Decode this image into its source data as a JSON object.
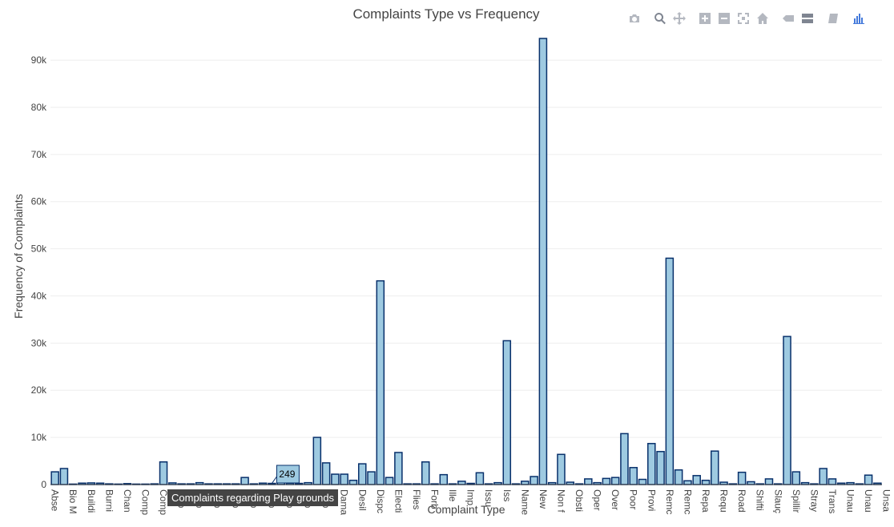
{
  "toolbar": {
    "icons": [
      "camera-icon",
      "zoom-icon",
      "pan-icon",
      "zoom-in-icon",
      "zoom-out-icon",
      "autoscale-icon",
      "home-icon",
      "spike-lines-icon",
      "compare-hover-icon",
      "closest-hover-icon",
      "plotly-logo-icon"
    ]
  },
  "hover": {
    "value_label": "249",
    "category_label": "Complaints regarding Play grounds",
    "category_index": 24
  },
  "colors": {
    "bar_fill": "#9ecae1",
    "bar_stroke": "#08306b",
    "grid": "#eeeeee",
    "tooltip_bg": "#444444"
  },
  "chart_data": {
    "type": "bar",
    "title": "Complaints Type vs Frequency",
    "xlabel": "Complaint Type",
    "ylabel": "Frequency of Complaints",
    "ylim": [
      0,
      98000
    ],
    "yticks": [
      0,
      10000,
      20000,
      30000,
      40000,
      50000,
      60000,
      70000,
      80000,
      90000
    ],
    "ytick_labels": [
      "0",
      "10k",
      "20k",
      "30k",
      "40k",
      "50k",
      "60k",
      "70k",
      "80k",
      "90k"
    ],
    "grid": true,
    "tick_labels": [
      {
        "index": 0,
        "text": "Abse"
      },
      {
        "index": 2,
        "text": "Bio M"
      },
      {
        "index": 4,
        "text": "Buildi"
      },
      {
        "index": 6,
        "text": "Burni"
      },
      {
        "index": 8,
        "text": "Chan"
      },
      {
        "index": 10,
        "text": "Comp"
      },
      {
        "index": 12,
        "text": "Comp"
      },
      {
        "index": 14,
        "text": "omp"
      },
      {
        "index": 16,
        "text": "omp"
      },
      {
        "index": 18,
        "text": "omp"
      },
      {
        "index": 20,
        "text": "omp"
      },
      {
        "index": 22,
        "text": "omp"
      },
      {
        "index": 24,
        "text": "omp"
      },
      {
        "index": 26,
        "text": "omp"
      },
      {
        "index": 28,
        "text": "omp"
      },
      {
        "index": 30,
        "text": "omp"
      },
      {
        "index": 32,
        "text": "Dama"
      },
      {
        "index": 34,
        "text": "Desil"
      },
      {
        "index": 36,
        "text": "Dispc"
      },
      {
        "index": 38,
        "text": "Electi"
      },
      {
        "index": 40,
        "text": "Flies"
      },
      {
        "index": 42,
        "text": "Forb"
      },
      {
        "index": 44,
        "text": "Ille"
      },
      {
        "index": 46,
        "text": "Imp"
      },
      {
        "index": 48,
        "text": "Issu"
      },
      {
        "index": 50,
        "text": "Iss"
      },
      {
        "index": 52,
        "text": "Name"
      },
      {
        "index": 54,
        "text": "New"
      },
      {
        "index": 56,
        "text": "Non f"
      },
      {
        "index": 58,
        "text": "Obsti"
      },
      {
        "index": 60,
        "text": "Oper"
      },
      {
        "index": 62,
        "text": "Over"
      },
      {
        "index": 64,
        "text": "Poor"
      },
      {
        "index": 66,
        "text": "Provi"
      },
      {
        "index": 68,
        "text": "Remc"
      },
      {
        "index": 70,
        "text": "Remc"
      },
      {
        "index": 72,
        "text": "Repa"
      },
      {
        "index": 74,
        "text": "Requ"
      },
      {
        "index": 76,
        "text": "Road"
      },
      {
        "index": 78,
        "text": "Shifti"
      },
      {
        "index": 80,
        "text": "Slauç"
      },
      {
        "index": 82,
        "text": "Spillir"
      },
      {
        "index": 84,
        "text": "Stray"
      },
      {
        "index": 86,
        "text": "Trans"
      },
      {
        "index": 88,
        "text": "Unau"
      },
      {
        "index": 90,
        "text": "Unau"
      },
      {
        "index": 92,
        "text": "Unsa"
      }
    ],
    "values": [
      2700,
      3400,
      100,
      300,
      350,
      300,
      150,
      100,
      200,
      100,
      100,
      150,
      4800,
      350,
      150,
      150,
      400,
      150,
      150,
      150,
      150,
      1500,
      150,
      300,
      249,
      400,
      300,
      250,
      400,
      10000,
      4600,
      2200,
      2200,
      900,
      4400,
      2700,
      43200,
      1500,
      6800,
      150,
      150,
      4800,
      150,
      2100,
      150,
      700,
      250,
      2500,
      150,
      400,
      30500,
      150,
      700,
      1700,
      94600,
      400,
      6400,
      500,
      150,
      1200,
      400,
      1300,
      1500,
      10800,
      3600,
      1100,
      8700,
      7000,
      48000,
      3100,
      800,
      1900,
      900,
      7100,
      500,
      150,
      2600,
      600,
      150,
      1200,
      150,
      31400,
      2700,
      400,
      150,
      3400,
      1200,
      300,
      400,
      150,
      2000,
      300
    ]
  }
}
